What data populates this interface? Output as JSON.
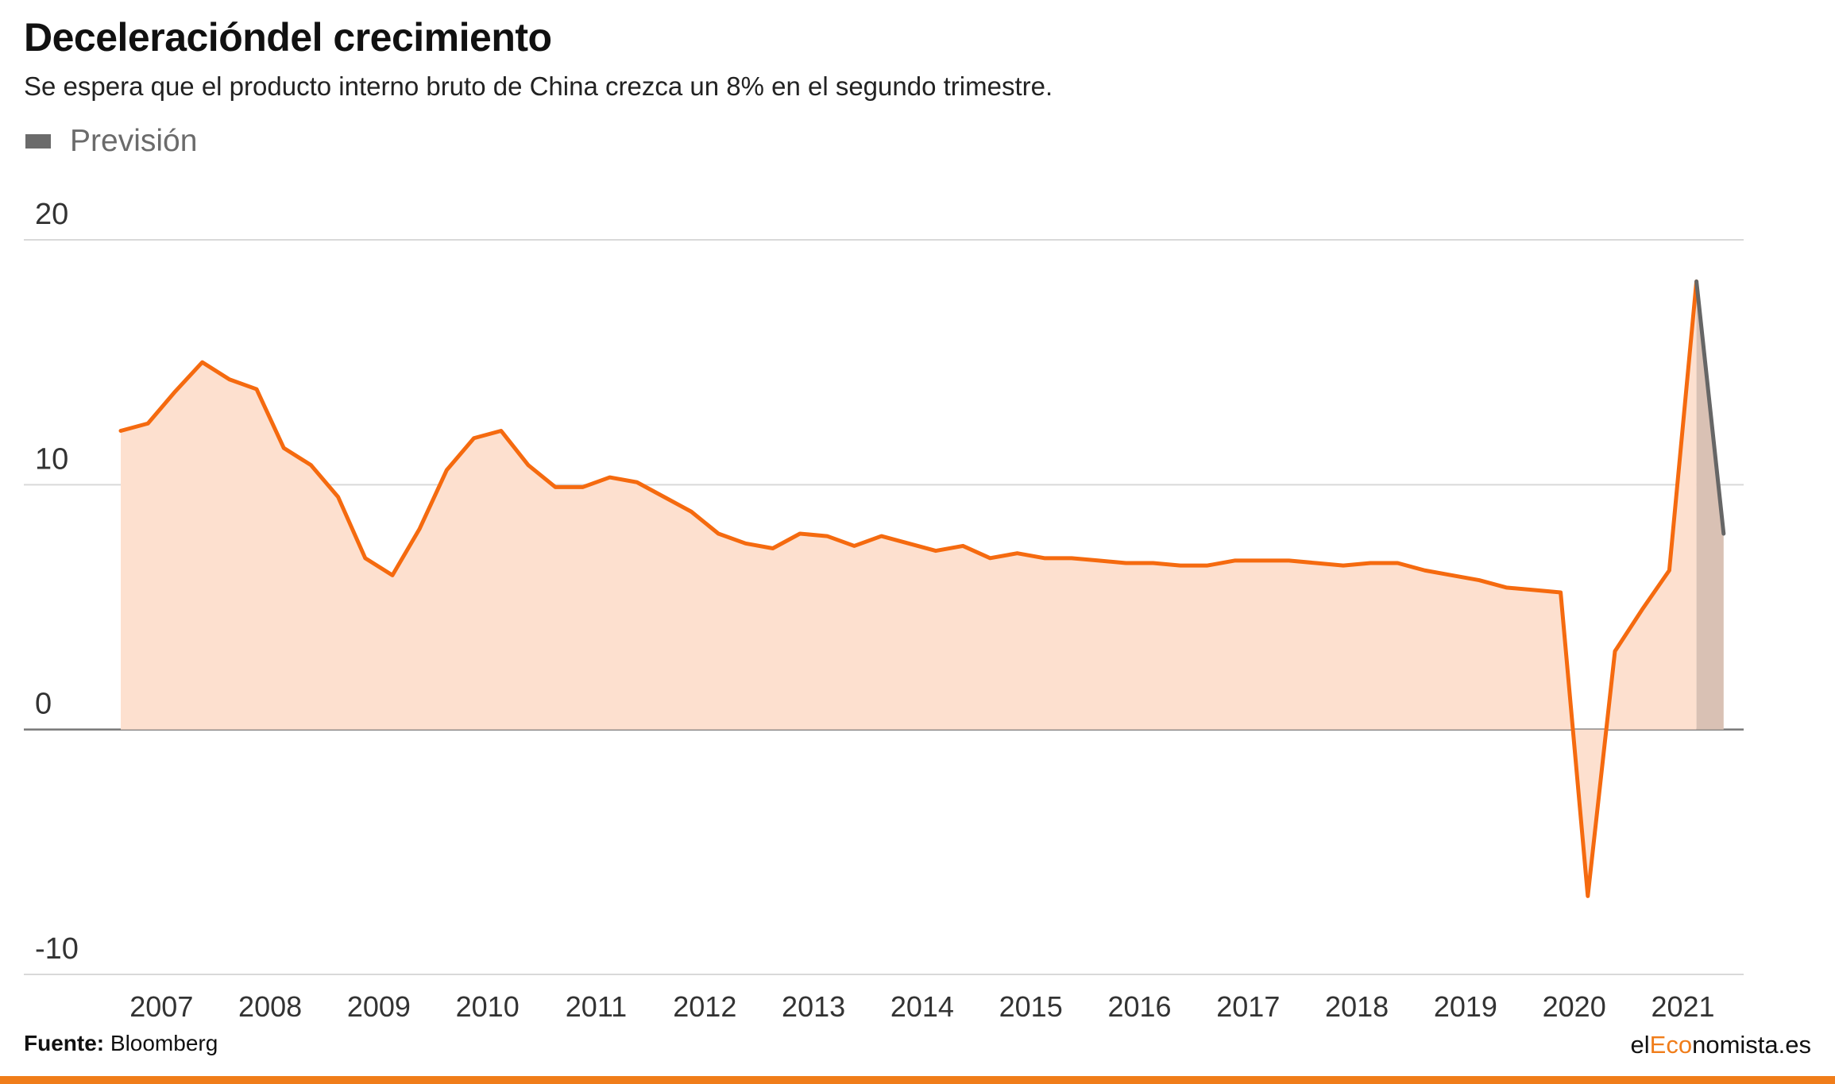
{
  "header": {
    "title": "Deceleracióndel crecimiento",
    "subtitle": "Se espera que el producto interno bruto de China crezca un 8% en el segundo trimestre."
  },
  "legend": {
    "label": "Previsión",
    "color": "#6b6b6b"
  },
  "footer": {
    "source_label": "Fuente:",
    "source_value": "Bloomberg"
  },
  "brand": {
    "prefix": "el",
    "accent": "Eco",
    "suffix": "nomista.es",
    "accent_color": "#f07d1a"
  },
  "colors": {
    "line": "#f56a0f",
    "area": "#fde0cf",
    "forecast_line": "#666666",
    "forecast_area": "#d9c1b4",
    "grid": "#d9d9d9",
    "zero_line": "#777777"
  },
  "chart_data": {
    "type": "area",
    "title": "Deceleracióndel crecimiento",
    "xlabel": "",
    "ylabel": "",
    "ylim": [
      -10,
      20
    ],
    "yticks": [
      20,
      10,
      0,
      -10
    ],
    "xticks": [
      "2007",
      "2008",
      "2009",
      "2010",
      "2011",
      "2012",
      "2013",
      "2014",
      "2015",
      "2016",
      "2017",
      "2018",
      "2019",
      "2020",
      "2021"
    ],
    "grid": true,
    "x_start": "2006-Q3",
    "x_step": "quarter",
    "series": [
      {
        "name": "",
        "values": [
          12.2,
          12.5,
          13.8,
          15.0,
          14.3,
          13.9,
          11.5,
          10.8,
          9.5,
          7.0,
          6.3,
          8.2,
          10.6,
          11.9,
          12.2,
          10.8,
          9.9,
          9.9,
          10.3,
          10.1,
          9.5,
          8.9,
          8.0,
          7.6,
          7.4,
          8.0,
          7.9,
          7.5,
          7.9,
          7.6,
          7.3,
          7.5,
          7.0,
          7.2,
          7.0,
          7.0,
          6.9,
          6.8,
          6.8,
          6.7,
          6.7,
          6.9,
          6.9,
          6.9,
          6.8,
          6.7,
          6.8,
          6.8,
          6.5,
          6.3,
          6.1,
          5.8,
          5.7,
          5.6,
          -6.8,
          3.2,
          4.9,
          6.5,
          18.3
        ]
      },
      {
        "name": "Previsión",
        "forecast": true,
        "values": [
          18.3,
          8.0
        ]
      }
    ]
  }
}
